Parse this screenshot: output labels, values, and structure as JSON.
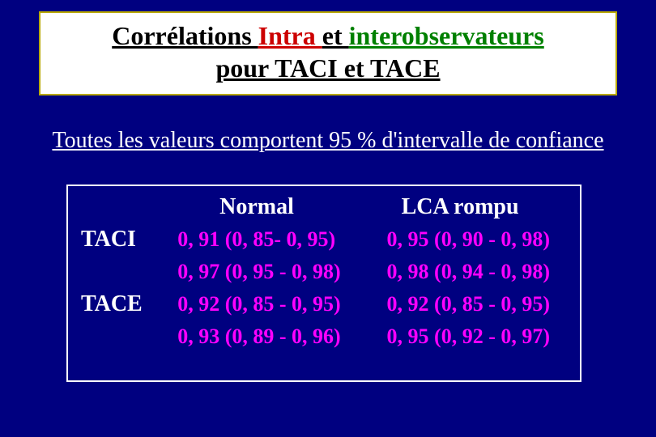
{
  "title": {
    "corr": "Corrélations ",
    "intra": "Intra ",
    "et": "et ",
    "inter": "interobservateurs",
    "sub": "pour TACI et TACE"
  },
  "subtitle": "Toutes les valeurs comportent  95 % d'intervalle de confiance",
  "table": {
    "header_normal": "Normal",
    "header_ruptured": "LCA rompu",
    "label_taci": "TACI",
    "label_tace": "TACE",
    "rows": [
      {
        "normal": "0, 91 (0, 85- 0, 95)",
        "ruptured": "0, 95 (0, 90 - 0, 98)"
      },
      {
        "normal": "0, 97 (0, 95 - 0, 98)",
        "ruptured": "0, 98 (0, 94 - 0, 98)"
      },
      {
        "normal": "0, 92 (0, 85 - 0, 95)",
        "ruptured": "0, 92 (0, 85 - 0, 95)"
      },
      {
        "normal": "0, 93 (0, 89 - 0, 96)",
        "ruptured": "0, 95 (0, 92 - 0, 97)"
      }
    ]
  },
  "colors": {
    "background": "#000080",
    "title_box_bg": "#ffffff",
    "title_box_border": "#b8a800",
    "intra": "#cc0000",
    "inter": "#008000",
    "body_white": "#ffffff",
    "value_magenta": "#ff00ff"
  }
}
